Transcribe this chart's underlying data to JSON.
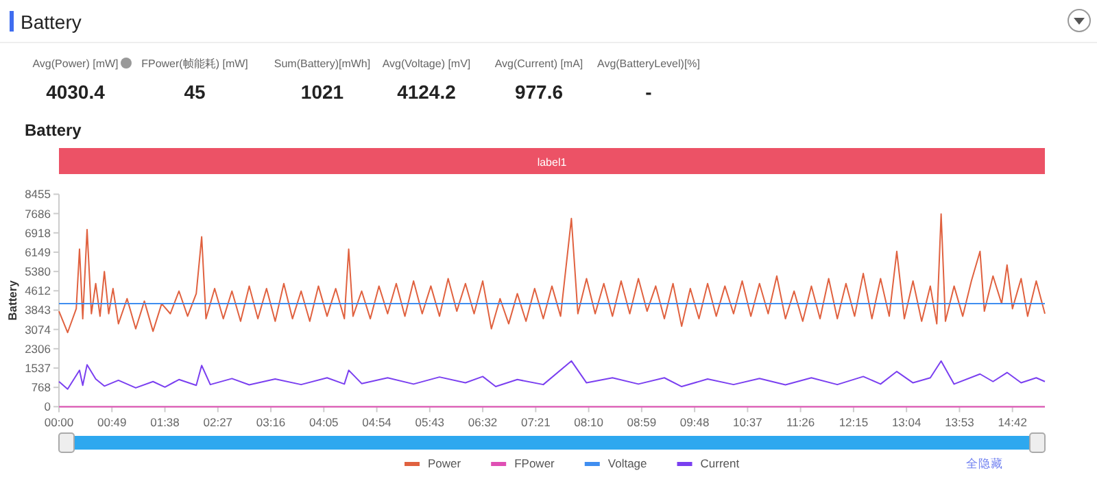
{
  "chart_data": [
    {
      "type": "other",
      "title": "Battery",
      "categories": [
        "Avg(Power) [mW]",
        "FPower(帧能耗) [mW]",
        "Sum(Battery)[mWh]",
        "Avg(Voltage) [mV]",
        "Avg(Current) [mA]",
        "Avg(BatteryLevel)[%]"
      ],
      "value_labels": [
        "4030.4",
        "45",
        "1021",
        "4124.2",
        "977.6",
        "-"
      ]
    },
    {
      "type": "line",
      "title": "Battery",
      "ylabel": "Battery",
      "legend": "bottom",
      "annotations": [
        "label1",
        "全隐藏"
      ],
      "xlim": [
        0,
        912
      ],
      "xticks": [
        {
          "value": 0,
          "label": "00:00"
        },
        {
          "value": 49,
          "label": "00:49"
        },
        {
          "value": 98,
          "label": "01:38"
        },
        {
          "value": 147,
          "label": "02:27"
        },
        {
          "value": 196,
          "label": "03:16"
        },
        {
          "value": 245,
          "label": "04:05"
        },
        {
          "value": 294,
          "label": "04:54"
        },
        {
          "value": 343,
          "label": "05:43"
        },
        {
          "value": 392,
          "label": "06:32"
        },
        {
          "value": 441,
          "label": "07:21"
        },
        {
          "value": 490,
          "label": "08:10"
        },
        {
          "value": 539,
          "label": "08:59"
        },
        {
          "value": 588,
          "label": "09:48"
        },
        {
          "value": 637,
          "label": "10:37"
        },
        {
          "value": 686,
          "label": "11:26"
        },
        {
          "value": 735,
          "label": "12:15"
        },
        {
          "value": 784,
          "label": "13:04"
        },
        {
          "value": 833,
          "label": "13:53"
        },
        {
          "value": 882,
          "label": "14:42"
        }
      ],
      "ylim": [
        0,
        8455
      ],
      "yticks": [
        0,
        768,
        1537,
        2306,
        3074,
        3843,
        4612,
        5380,
        6149,
        6918,
        7686,
        8455
      ],
      "series": [
        {
          "name": "Power",
          "color": "#e0613f",
          "x": [
            0,
            8,
            16,
            19,
            22,
            26,
            30,
            34,
            38,
            42,
            46,
            50,
            55,
            63,
            71,
            79,
            87,
            95,
            103,
            111,
            119,
            127,
            132,
            136,
            144,
            152,
            160,
            168,
            176,
            184,
            192,
            200,
            208,
            216,
            224,
            232,
            240,
            248,
            256,
            264,
            268,
            272,
            280,
            288,
            296,
            304,
            312,
            320,
            328,
            336,
            344,
            352,
            360,
            368,
            376,
            384,
            392,
            400,
            408,
            416,
            424,
            432,
            440,
            448,
            456,
            464,
            474,
            480,
            488,
            496,
            504,
            512,
            520,
            528,
            536,
            544,
            552,
            560,
            568,
            576,
            584,
            592,
            600,
            608,
            616,
            624,
            632,
            640,
            648,
            656,
            664,
            672,
            680,
            688,
            696,
            704,
            712,
            720,
            728,
            736,
            744,
            752,
            760,
            768,
            775,
            782,
            790,
            798,
            806,
            812,
            816,
            820,
            828,
            836,
            844,
            852,
            856,
            864,
            872,
            877,
            882,
            890,
            896,
            904,
            912
          ],
          "values": [
            3800,
            2950,
            3900,
            6270,
            3500,
            7050,
            3700,
            4900,
            3600,
            5380,
            3700,
            4700,
            3300,
            4300,
            3100,
            4200,
            3000,
            4100,
            3700,
            4600,
            3600,
            4500,
            6760,
            3500,
            4700,
            3500,
            4600,
            3400,
            4800,
            3500,
            4700,
            3400,
            4900,
            3500,
            4600,
            3400,
            4800,
            3600,
            4700,
            3500,
            6270,
            3600,
            4600,
            3500,
            4800,
            3700,
            4900,
            3600,
            5000,
            3700,
            4800,
            3600,
            5100,
            3800,
            4900,
            3700,
            5000,
            3100,
            4300,
            3300,
            4500,
            3400,
            4700,
            3500,
            4800,
            3600,
            7490,
            3700,
            5100,
            3700,
            4900,
            3600,
            5000,
            3700,
            5100,
            3800,
            4800,
            3500,
            4900,
            3200,
            4700,
            3500,
            4900,
            3600,
            4800,
            3700,
            5000,
            3600,
            4900,
            3700,
            5200,
            3500,
            4600,
            3400,
            4800,
            3500,
            5100,
            3500,
            4900,
            3600,
            5300,
            3500,
            5100,
            3600,
            6180,
            3500,
            5000,
            3400,
            4800,
            3300,
            7670,
            3400,
            4800,
            3600,
            5000,
            6180,
            3800,
            5200,
            4100,
            5640,
            3900,
            5100,
            3600,
            5000,
            3700
          ]
        },
        {
          "name": "FPower",
          "color": "#df4fb4",
          "x": [
            0,
            912
          ],
          "values": [
            0,
            0
          ]
        },
        {
          "name": "Voltage",
          "color": "#3f8ef0",
          "x": [
            0,
            912
          ],
          "values": [
            4100,
            4100
          ]
        },
        {
          "name": "Current",
          "color": "#7a3ff0",
          "x": [
            0,
            8,
            19,
            22,
            26,
            34,
            42,
            55,
            71,
            87,
            98,
            111,
            127,
            132,
            140,
            160,
            176,
            200,
            224,
            248,
            264,
            268,
            280,
            304,
            328,
            352,
            376,
            392,
            404,
            424,
            448,
            474,
            488,
            512,
            536,
            560,
            576,
            600,
            624,
            648,
            672,
            696,
            720,
            744,
            760,
            775,
            790,
            806,
            816,
            828,
            852,
            864,
            877,
            890,
            904,
            912
          ],
          "values": [
            1000,
            700,
            1450,
            850,
            1670,
            1100,
            820,
            1050,
            750,
            1000,
            780,
            1080,
            850,
            1640,
            880,
            1120,
            870,
            1100,
            880,
            1150,
            900,
            1450,
            920,
            1150,
            900,
            1180,
            950,
            1200,
            800,
            1080,
            880,
            1820,
            950,
            1150,
            900,
            1150,
            800,
            1100,
            880,
            1120,
            870,
            1150,
            880,
            1200,
            900,
            1400,
            950,
            1150,
            1820,
            900,
            1300,
            1000,
            1360,
            950,
            1150,
            1000
          ]
        }
      ]
    }
  ]
}
